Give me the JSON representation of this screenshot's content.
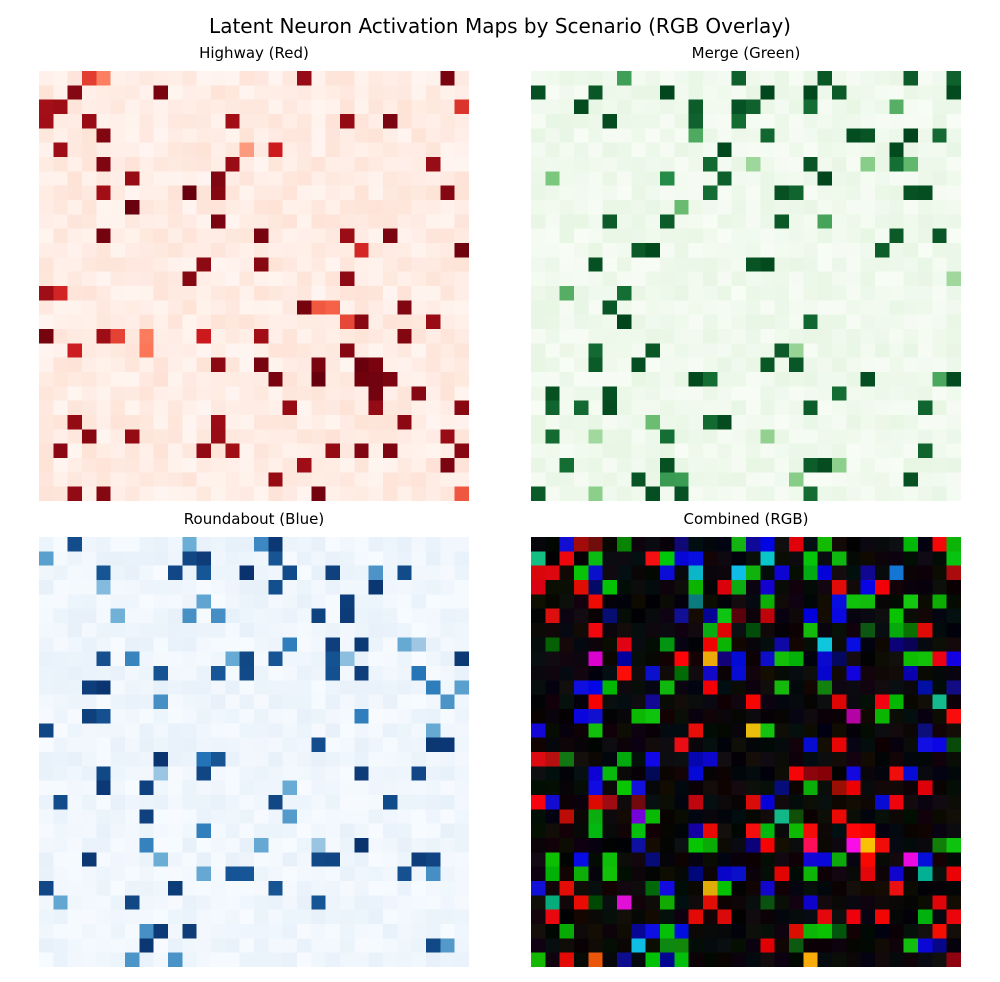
{
  "title": "Latent Neuron Activation Maps by Scenario (RGB Overlay)",
  "chart_data": [
    {
      "type": "heatmap",
      "title": "Highway (Red)",
      "colormap": "Reds",
      "grid": [
        30,
        30
      ],
      "seed": 11,
      "dark_fraction": 0.085,
      "mid_fraction": 0.02,
      "value_range": [
        0,
        1
      ]
    },
    {
      "type": "heatmap",
      "title": "Merge (Green)",
      "colormap": "Greens",
      "grid": [
        30,
        30
      ],
      "seed": 23,
      "dark_fraction": 0.08,
      "mid_fraction": 0.035,
      "value_range": [
        0,
        1
      ]
    },
    {
      "type": "heatmap",
      "title": "Roundabout (Blue)",
      "colormap": "Blues",
      "grid": [
        30,
        30
      ],
      "seed": 37,
      "dark_fraction": 0.08,
      "mid_fraction": 0.035,
      "value_range": [
        0,
        1
      ]
    },
    {
      "type": "heatmap",
      "title": "Combined (RGB)",
      "colormap": "RGB",
      "grid": [
        30,
        30
      ],
      "composed_from": [
        "Highway (Red)",
        "Merge (Green)",
        "Roundabout (Blue)"
      ],
      "value_range": [
        0,
        1
      ]
    }
  ],
  "colors": {
    "reds": [
      "#fff5f0",
      "#fcbba1",
      "#fb6a4a",
      "#cb181d",
      "#67000d"
    ],
    "greens": [
      "#f7fcf5",
      "#c7e9c0",
      "#74c476",
      "#238b45",
      "#00441b"
    ],
    "blues": [
      "#f7fbff",
      "#c6dbef",
      "#6baed6",
      "#2171b5",
      "#08306b"
    ]
  }
}
